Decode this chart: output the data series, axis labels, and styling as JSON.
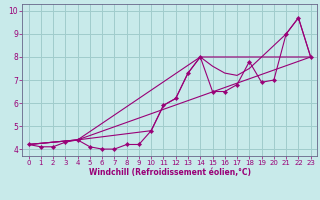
{
  "xlabel": "Windchill (Refroidissement éolien,°C)",
  "bg_color": "#c8eaea",
  "grid_color": "#a0cccc",
  "line_color": "#990077",
  "xlim": [
    -0.5,
    23.5
  ],
  "ylim": [
    3.7,
    10.3
  ],
  "xticks": [
    0,
    1,
    2,
    3,
    4,
    5,
    6,
    7,
    8,
    9,
    10,
    11,
    12,
    13,
    14,
    15,
    16,
    17,
    18,
    19,
    20,
    21,
    22,
    23
  ],
  "yticks": [
    4,
    5,
    6,
    7,
    8,
    9,
    10
  ],
  "series1_x": [
    0,
    1,
    2,
    3,
    4,
    5,
    6,
    7,
    8,
    9,
    10,
    11,
    12,
    13,
    14,
    15,
    16,
    17,
    18,
    19,
    20,
    21,
    22,
    23
  ],
  "series1_y": [
    4.2,
    4.1,
    4.1,
    4.3,
    4.4,
    4.1,
    4.0,
    4.0,
    4.2,
    4.2,
    4.8,
    5.9,
    6.2,
    7.3,
    8.0,
    6.5,
    6.5,
    6.8,
    7.8,
    6.9,
    7.0,
    9.0,
    9.7,
    8.0
  ],
  "series2_x": [
    0,
    4,
    23
  ],
  "series2_y": [
    4.2,
    4.4,
    8.0
  ],
  "series3_x": [
    0,
    4,
    14,
    15,
    16,
    17,
    18,
    21,
    22,
    23
  ],
  "series3_y": [
    4.2,
    4.4,
    8.0,
    7.6,
    7.3,
    7.2,
    7.5,
    9.0,
    9.7,
    8.0
  ],
  "series4_x": [
    0,
    4,
    10,
    11,
    12,
    13,
    14,
    23
  ],
  "series4_y": [
    4.2,
    4.4,
    4.8,
    5.9,
    6.2,
    7.3,
    8.0,
    8.0
  ],
  "xlabel_fontsize": 5.5,
  "tick_fontsize": 5.0,
  "spine_color": "#666688"
}
